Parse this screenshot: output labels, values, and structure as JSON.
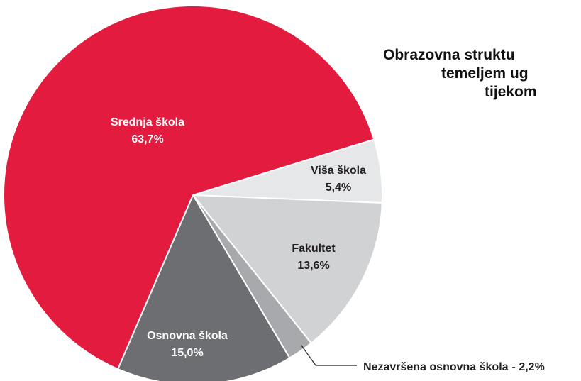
{
  "chart_data": {
    "type": "pie",
    "title": [
      "Obrazovna struktu",
      "temeljem ug",
      "tijekom"
    ],
    "categories": [
      "Viša škola",
      "Fakultet",
      "Nezavršena osnovna škola",
      "Osnovna škola",
      "Srednja škola"
    ],
    "values": [
      5.4,
      13.6,
      2.2,
      15.0,
      63.7
    ],
    "value_labels": [
      "5,4%",
      "13,6%",
      "- 2,2%",
      "15,0%",
      "63,7%"
    ],
    "colors": [
      "#e6e7e8",
      "#d1d2d4",
      "#a7a9ac",
      "#6d6e71",
      "#e31b3f"
    ]
  }
}
